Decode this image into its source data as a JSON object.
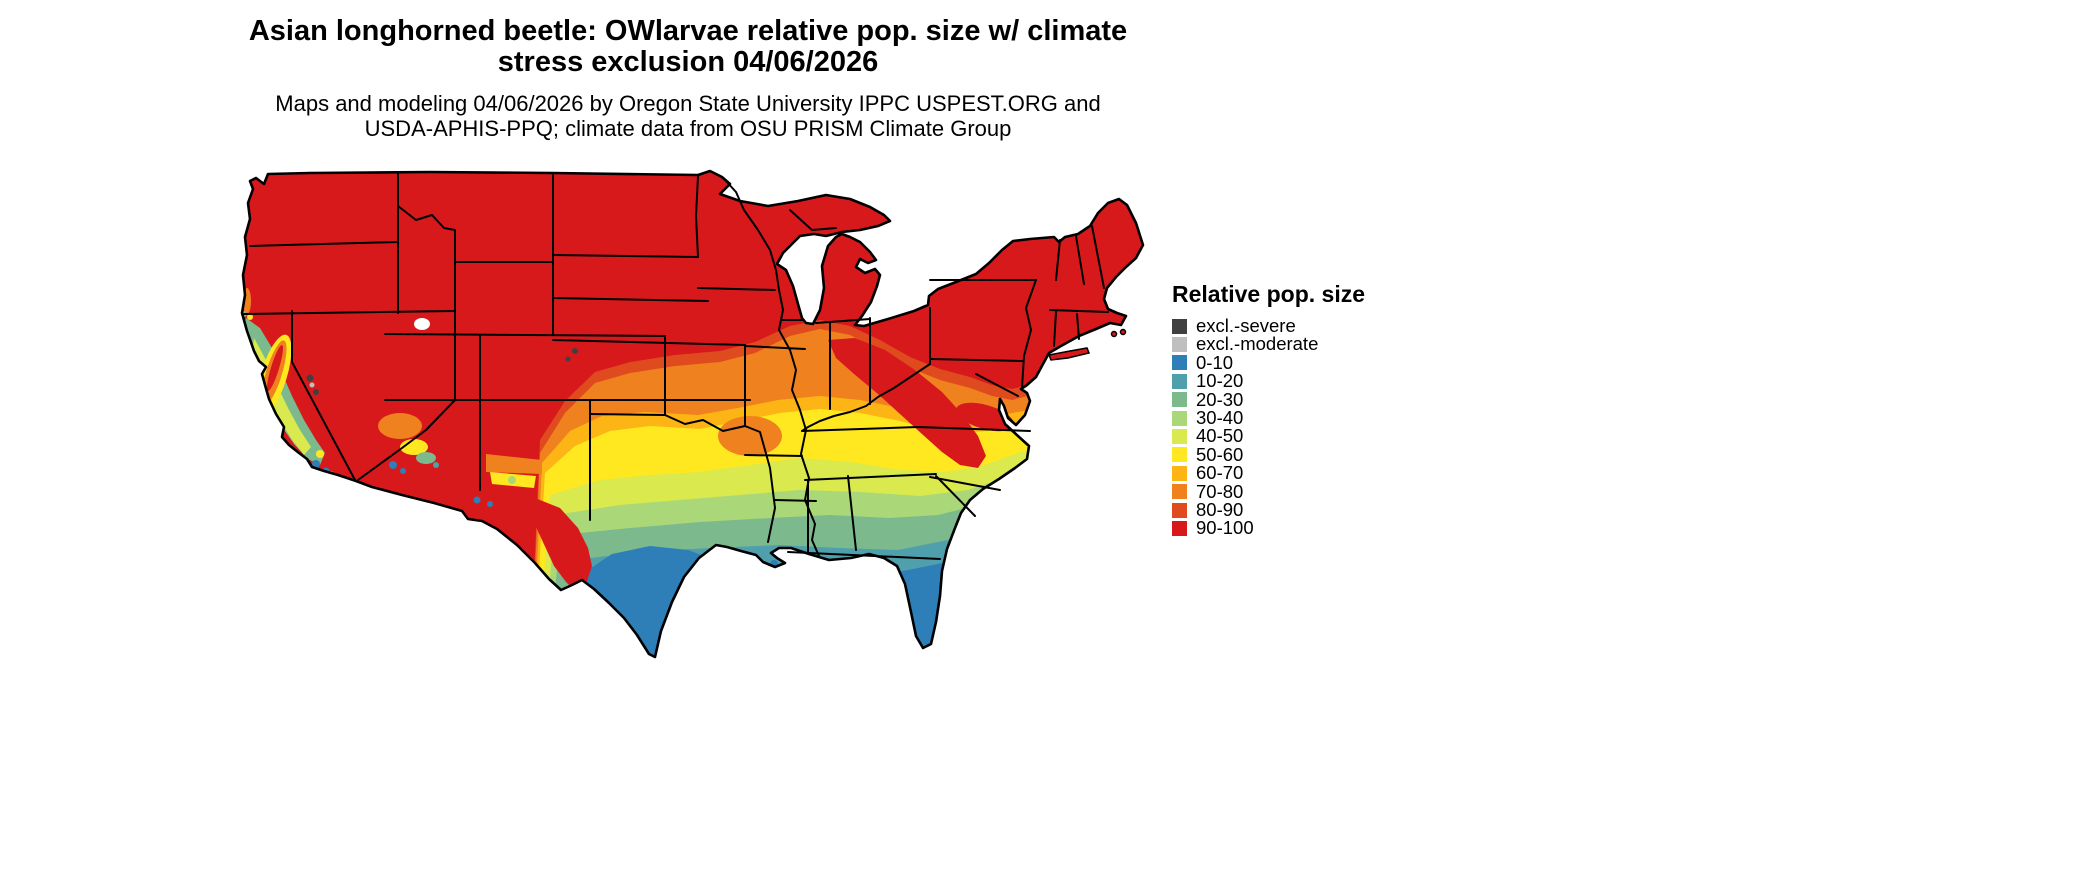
{
  "header": {
    "title_line1": "Asian longhorned beetle: OWlarvae relative pop. size w/ climate",
    "title_line2": "stress exclusion 04/06/2026",
    "subtitle_line1": "Maps and modeling 04/06/2026 by Oregon State University IPPC USPEST.ORG and",
    "subtitle_line2": "USDA-APHIS-PPQ; climate data from OSU PRISM Climate Group"
  },
  "legend": {
    "title": "Relative pop. size",
    "items": [
      {
        "key": "exclSevere",
        "label": "excl.-severe",
        "color": "#404040"
      },
      {
        "key": "exclModerate",
        "label": "excl.-moderate",
        "color": "#bfbfbf"
      },
      {
        "key": "b0",
        "label": "0-10",
        "color": "#2e7eb7"
      },
      {
        "key": "b10",
        "label": "10-20",
        "color": "#4f9fad"
      },
      {
        "key": "b20",
        "label": "20-30",
        "color": "#7cba8d"
      },
      {
        "key": "b30",
        "label": "30-40",
        "color": "#aad878"
      },
      {
        "key": "b40",
        "label": "40-50",
        "color": "#d9e94e"
      },
      {
        "key": "b50",
        "label": "50-60",
        "color": "#ffe81f"
      },
      {
        "key": "b60",
        "label": "60-70",
        "color": "#fcb514"
      },
      {
        "key": "b70",
        "label": "70-80",
        "color": "#f0811f"
      },
      {
        "key": "b80",
        "label": "80-90",
        "color": "#e04a1f"
      },
      {
        "key": "b90",
        "label": "90-100",
        "color": "#d7191c"
      }
    ]
  },
  "map": {
    "region": "Continental United States",
    "water_color": "#ffffff",
    "border_color": "#000000"
  }
}
